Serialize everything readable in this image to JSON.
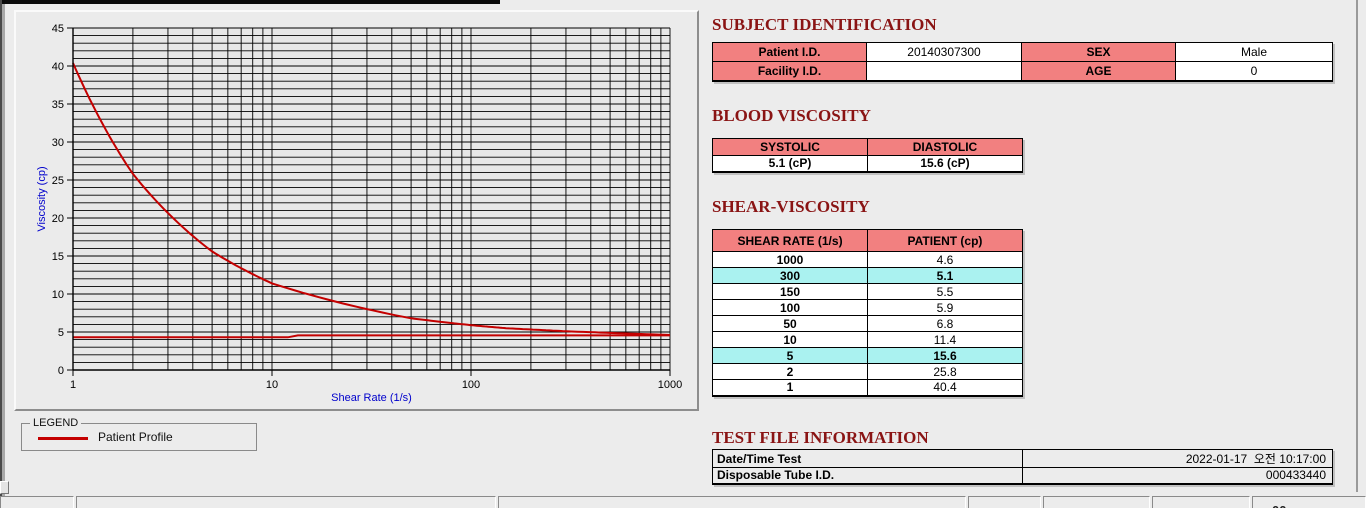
{
  "subject_identification": {
    "title": "SUBJECT IDENTIFICATION",
    "rows": [
      {
        "label1": "Patient I.D.",
        "value1": "20140307300",
        "label2": "SEX",
        "value2": "Male"
      },
      {
        "label1": "Facility I.D.",
        "value1": "",
        "label2": "AGE",
        "value2": "0"
      }
    ]
  },
  "blood_viscosity": {
    "title": "BLOOD VISCOSITY",
    "headers": [
      "SYSTOLIC",
      "DIASTOLIC"
    ],
    "values": [
      "5.1 (cP)",
      "15.6 (cP)"
    ]
  },
  "shear_viscosity": {
    "title": "SHEAR-VISCOSITY",
    "headers": [
      "SHEAR RATE (1/s)",
      "PATIENT (cp)"
    ],
    "rows": [
      {
        "shear_rate": "1000",
        "patient": "4.6",
        "highlight": false
      },
      {
        "shear_rate": "300",
        "patient": "5.1",
        "highlight": true
      },
      {
        "shear_rate": "150",
        "patient": "5.5",
        "highlight": false
      },
      {
        "shear_rate": "100",
        "patient": "5.9",
        "highlight": false
      },
      {
        "shear_rate": "50",
        "patient": "6.8",
        "highlight": false
      },
      {
        "shear_rate": "10",
        "patient": "11.4",
        "highlight": false
      },
      {
        "shear_rate": "5",
        "patient": "15.6",
        "highlight": true
      },
      {
        "shear_rate": "2",
        "patient": "25.8",
        "highlight": false
      },
      {
        "shear_rate": "1",
        "patient": "40.4",
        "highlight": false
      }
    ]
  },
  "test_file_information": {
    "title": "TEST FILE INFORMATION",
    "rows": [
      {
        "label": "Date/Time Test",
        "value": "2022-01-17  오전 10:17:00"
      },
      {
        "label": "Disposable Tube I.D.",
        "value": "000433440"
      }
    ]
  },
  "legend": {
    "group_title": "LEGEND",
    "series_label": "Patient Profile",
    "line_color": "#c40000"
  },
  "status_bar": {
    "partial_text": "00"
  },
  "chart_data": {
    "type": "line",
    "x_scale": "log",
    "xlabel": "Shear Rate (1/s)",
    "ylabel": "Viscosity (cp)",
    "xlim": [
      1,
      1000
    ],
    "ylim": [
      0,
      45
    ],
    "x_major_ticks": [
      1,
      10,
      100,
      1000
    ],
    "y_major_ticks": [
      0,
      5,
      10,
      15,
      20,
      25,
      30,
      35,
      40,
      45
    ],
    "y_minor_step": 1,
    "grid": "on",
    "legend_position": "below-left",
    "series": [
      {
        "name": "Patient Profile",
        "color": "#c40000",
        "smooth": true,
        "x": [
          1,
          2,
          5,
          10,
          50,
          100,
          150,
          300,
          1000
        ],
        "y": [
          40.4,
          25.8,
          15.6,
          11.4,
          6.8,
          5.9,
          5.5,
          5.1,
          4.6
        ]
      },
      {
        "name": "baseline",
        "color": "#c40000",
        "smooth": false,
        "x": [
          1,
          12,
          13.5,
          1000
        ],
        "y": [
          4.3,
          4.3,
          4.55,
          4.55
        ]
      }
    ],
    "colors": {
      "axis_label": "#0000cc",
      "grid": "#000000",
      "plot_bg": "#e7e7e7"
    }
  }
}
